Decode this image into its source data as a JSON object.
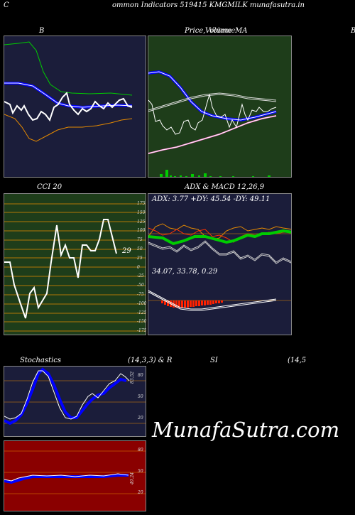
{
  "header": {
    "left_letter": "C",
    "title": "ommon  Indicators 519415 KMGMILK munafasutra.in"
  },
  "bollinger": {
    "title": "B"
  },
  "price_ma": {
    "title_price": "Price,",
    "title_volume": "Volume",
    "title_ma": "MA",
    "title_overlap": "Volume"
  },
  "right_edge_letter": "B",
  "cci": {
    "title": "CCI 20",
    "value": "29",
    "levels": [
      "175",
      "150",
      "125",
      "100",
      "75",
      "50",
      "25",
      "0",
      "-25",
      "-50",
      "-75",
      "-100",
      "-125",
      "-150",
      "-175"
    ]
  },
  "adx_macd": {
    "title": "ADX  & MACD 12,26,9",
    "adx_line": "ADX: 3.77 +DY: 45.54  -DY: 49.11",
    "macd_line": "34.07,  33.78,  0.29"
  },
  "stochastics": {
    "title_left": "Stochastics",
    "title_params": "(14,3,3) & R",
    "levels": [
      "80",
      "50",
      "20"
    ],
    "value": "83.52"
  },
  "rsi": {
    "title": "SI",
    "params": "(14,5",
    "levels": [
      "80",
      "50",
      "20"
    ],
    "value": "49.24"
  },
  "watermark": "MunafaSutra.com",
  "colors": {
    "panel_navy": "#1b1d3a",
    "panel_green": "#1e3d1a",
    "rsi_red": "#8a0000",
    "line_blue": "#0000ff",
    "line_green": "#00cc00",
    "line_orange": "#e68a00"
  }
}
